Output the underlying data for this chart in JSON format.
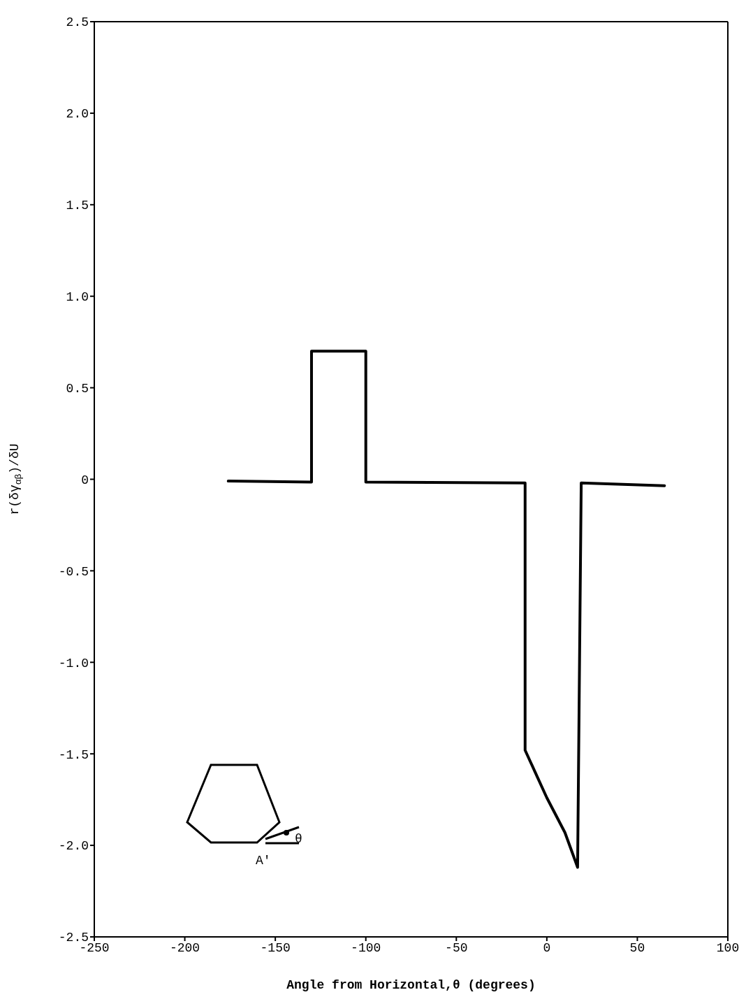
{
  "chart_data": {
    "type": "line",
    "xlabel": "Angle from Horizontal,θ (degrees)",
    "ylabel": "r(δγ$_{αβ}$)/δU",
    "x": [
      -176,
      -130,
      -130,
      -100,
      -100,
      -12,
      -12,
      0,
      10,
      17,
      19,
      65
    ],
    "series": [
      {
        "color": "#000000",
        "values": [
          -0.01,
          -0.015,
          0.7,
          0.7,
          -0.015,
          -0.02,
          -1.48,
          -1.74,
          -1.93,
          -2.12,
          -0.02,
          -0.035
        ]
      }
    ],
    "xlim": [
      -250,
      100
    ],
    "xticks": [
      -250,
      -200,
      -150,
      -100,
      -50,
      0,
      50,
      100
    ],
    "ylim": [
      -2.5,
      2.5
    ],
    "yticks": [
      {
        "value": -2.5,
        "label": "-2.5"
      },
      {
        "value": -2,
        "label": "-2.0"
      },
      {
        "value": -1.5,
        "label": "-1.5"
      },
      {
        "value": -1,
        "label": "-1.0"
      },
      {
        "value": -0.5,
        "label": "-0.5"
      },
      0,
      {
        "value": 0.5,
        "label": "0.5"
      },
      {
        "value": 1,
        "label": "1.0"
      },
      {
        "value": 1.5,
        "label": "1.5"
      },
      {
        "value": 2,
        "label": "2.0"
      },
      {
        "value": 2.5,
        "label": "2.5"
      }
    ],
    "annotations": [
      "A'",
      "θ"
    ],
    "grid": false,
    "legend": false,
    "marker": "none",
    "line_style": "solid"
  }
}
